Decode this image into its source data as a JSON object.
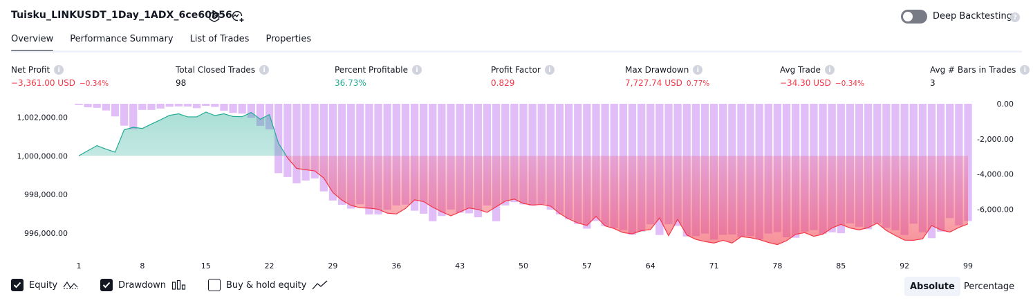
{
  "header": {
    "title": "Tuisku_LINKUSDT_1Day_1ADX_6ce60b56",
    "deep_backtesting_label": "Deep Backtesting",
    "deep_backtesting_on": false
  },
  "tabs": [
    {
      "label": "Overview",
      "active": true
    },
    {
      "label": "Performance Summary",
      "active": false
    },
    {
      "label": "List of Trades",
      "active": false
    },
    {
      "label": "Properties",
      "active": false
    }
  ],
  "metrics": [
    {
      "label": "Net Profit",
      "value": "−3,361.00 USD",
      "sub": "−0.34%",
      "tone": "neg"
    },
    {
      "label": "Total Closed Trades",
      "value": "98",
      "sub": "",
      "tone": "neu"
    },
    {
      "label": "Percent Profitable",
      "value": "36.73%",
      "sub": "",
      "tone": "pos"
    },
    {
      "label": "Profit Factor",
      "value": "0.829",
      "sub": "",
      "tone": "neg"
    },
    {
      "label": "Max Drawdown",
      "value": "7,727.74 USD",
      "sub": "0.77%",
      "tone": "neg"
    },
    {
      "label": "Avg Trade",
      "value": "−34.30 USD",
      "sub": "−0.34%",
      "tone": "neg"
    },
    {
      "label": "Avg # Bars in Trades",
      "value": "3",
      "sub": "",
      "tone": "neu"
    }
  ],
  "legend": {
    "equity": {
      "label": "Equity",
      "checked": true
    },
    "drawdown": {
      "label": "Drawdown",
      "checked": true
    },
    "buyhold": {
      "label": "Buy & hold equity",
      "checked": false
    }
  },
  "mode": {
    "absolute": "Absolute",
    "percentage": "Percentage",
    "selected": "Absolute"
  },
  "colors": {
    "equity_up": "#22ab94",
    "equity_down": "#f23645",
    "drawdown_bar": "#ce93f5",
    "positive_text": "#22ab94",
    "negative_text": "#f23645"
  },
  "chart_data": {
    "type": "line",
    "title": "",
    "xlabel": "",
    "ylabel": "",
    "x_ticks": [
      "1",
      "8",
      "15",
      "22",
      "29",
      "36",
      "43",
      "50",
      "57",
      "64",
      "71",
      "78",
      "85",
      "92",
      "99"
    ],
    "left_axis": {
      "ticks": [
        "1,002,000.00",
        "1,000,000.00",
        "998,000.00",
        "996,000.00"
      ],
      "tick_values": [
        1002000,
        1000000,
        998000,
        996000
      ],
      "range": [
        995170,
        1002700
      ]
    },
    "right_axis": {
      "ticks": [
        "0.00",
        "-2,000.00",
        "-4,000.00",
        "-6,000.00"
      ],
      "tick_values": [
        0,
        -2000,
        -4000,
        -6000
      ],
      "range": [
        -8270,
        0
      ]
    },
    "baseline": 1000000,
    "series": [
      {
        "name": "Equity",
        "x": [
          1,
          2,
          3,
          4,
          5,
          6,
          7,
          8,
          9,
          10,
          11,
          12,
          13,
          14,
          15,
          16,
          17,
          18,
          19,
          20,
          21,
          22,
          23,
          24,
          25,
          26,
          27,
          28,
          29,
          30,
          31,
          32,
          33,
          34,
          35,
          36,
          37,
          38,
          39,
          40,
          41,
          42,
          43,
          44,
          45,
          46,
          47,
          48,
          49,
          50,
          51,
          52,
          53,
          54,
          55,
          56,
          57,
          58,
          59,
          60,
          61,
          62,
          63,
          64,
          65,
          66,
          67,
          68,
          69,
          70,
          71,
          72,
          73,
          74,
          75,
          76,
          77,
          78,
          79,
          80,
          81,
          82,
          83,
          84,
          85,
          86,
          87,
          88,
          89,
          90,
          91,
          92,
          93,
          94,
          95,
          96,
          97,
          98,
          99
        ],
        "values": [
          1000000,
          1000270,
          1000530,
          1000350,
          1000190,
          1001350,
          1001480,
          1001420,
          1001650,
          1001870,
          1002100,
          1002180,
          1002020,
          1002020,
          1002270,
          1002090,
          1002180,
          1002040,
          1002030,
          1002250,
          1001900,
          1002140,
          1000660,
          999900,
          999350,
          999280,
          999220,
          998850,
          998100,
          997700,
          997430,
          997310,
          997290,
          997230,
          997030,
          996990,
          997270,
          997720,
          997630,
          997340,
          997100,
          996890,
          997090,
          997300,
          997220,
          997070,
          997360,
          997650,
          997760,
          997530,
          997450,
          997480,
          997390,
          997010,
          996730,
          996520,
          996390,
          996860,
          996370,
          996230,
          996020,
          995960,
          996120,
          996180,
          996780,
          995860,
          996710,
          995900,
          995670,
          995560,
          995480,
          995620,
          995480,
          995810,
          995760,
          995660,
          995510,
          995400,
          995600,
          995930,
          996020,
          995830,
          995940,
          996260,
          996450,
          996260,
          996160,
          996280,
          996510,
          996130,
          995870,
          995630,
          995620,
          995700,
          996390,
          996160,
          996050,
          996290,
          996470
        ]
      },
      {
        "name": "Drawdown",
        "x": [
          1,
          2,
          3,
          4,
          5,
          6,
          7,
          8,
          9,
          10,
          11,
          12,
          13,
          14,
          15,
          16,
          17,
          18,
          19,
          20,
          21,
          22,
          23,
          24,
          25,
          26,
          27,
          28,
          29,
          30,
          31,
          32,
          33,
          34,
          35,
          36,
          37,
          38,
          39,
          40,
          41,
          42,
          43,
          44,
          45,
          46,
          47,
          48,
          49,
          50,
          51,
          52,
          53,
          54,
          55,
          56,
          57,
          58,
          59,
          60,
          61,
          62,
          63,
          64,
          65,
          66,
          67,
          68,
          69,
          70,
          71,
          72,
          73,
          74,
          75,
          76,
          77,
          78,
          79,
          80,
          81,
          82,
          83,
          84,
          85,
          86,
          87,
          88,
          89,
          90,
          91,
          92,
          93,
          94,
          95,
          96,
          97,
          98,
          99
        ],
        "values": [
          -70,
          -200,
          -230,
          -380,
          -720,
          -1250,
          -1450,
          -350,
          -350,
          -270,
          -170,
          -150,
          -160,
          -250,
          -120,
          -180,
          -400,
          -520,
          -560,
          -800,
          -1260,
          -1460,
          -3950,
          -4170,
          -4530,
          -4370,
          -4250,
          -4990,
          -5510,
          -5750,
          -5970,
          -5720,
          -6300,
          -6300,
          -6040,
          -5790,
          -5740,
          -6090,
          -6260,
          -6690,
          -6390,
          -6020,
          -6200,
          -6240,
          -6460,
          -5790,
          -6690,
          -5790,
          -5600,
          -5730,
          -5810,
          -5720,
          -6030,
          -6300,
          -6580,
          -6840,
          -7110,
          -6670,
          -6960,
          -7080,
          -7190,
          -7460,
          -7280,
          -6860,
          -7470,
          -6850,
          -6950,
          -7560,
          -7530,
          -7390,
          -7730,
          -7460,
          -7440,
          -7580,
          -7530,
          -7720,
          -7390,
          -7310,
          -7600,
          -7630,
          -7280,
          -7190,
          -7400,
          -7320,
          -7370,
          -6810,
          -7000,
          -7140,
          -6810,
          -7060,
          -7200,
          -7470,
          -6830,
          -7320,
          -7650,
          -7280,
          -6510,
          -6920,
          -6680
        ]
      }
    ],
    "grid": false,
    "legend": "bottom-left"
  }
}
